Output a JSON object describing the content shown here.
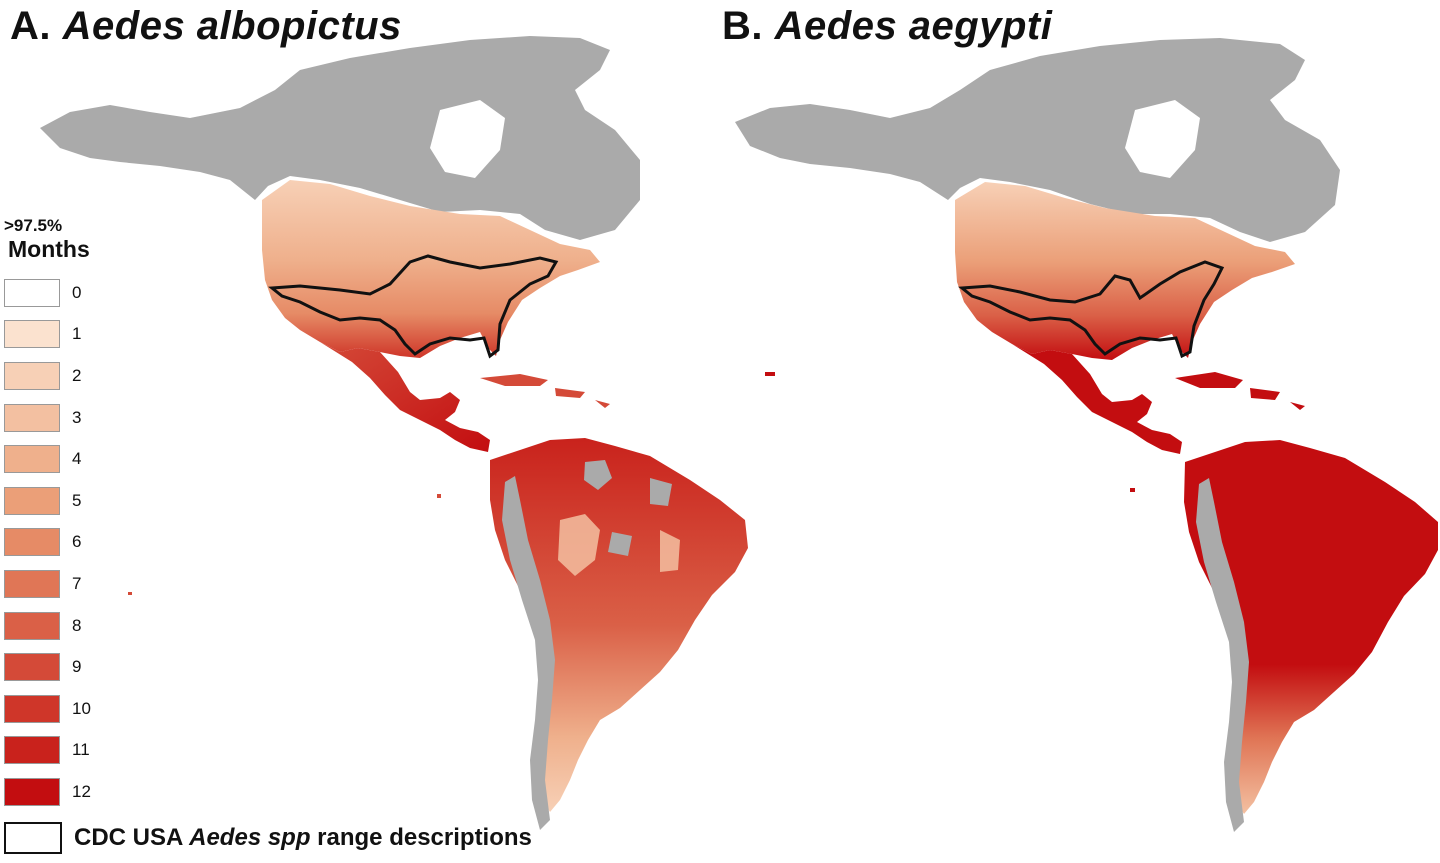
{
  "panels": [
    {
      "letter": "A.",
      "species": "Aedes albopictus"
    },
    {
      "letter": "B.",
      "species": "Aedes aegypti"
    }
  ],
  "legend": {
    "threshold": ">97.5%",
    "title": "Months",
    "items": [
      {
        "label": "0",
        "color": "#ffffff"
      },
      {
        "label": "1",
        "color": "#fbe2cf"
      },
      {
        "label": "2",
        "color": "#f7d0b6"
      },
      {
        "label": "3",
        "color": "#f3c0a1"
      },
      {
        "label": "4",
        "color": "#efb08c"
      },
      {
        "label": "5",
        "color": "#eb9f78"
      },
      {
        "label": "6",
        "color": "#e68b66"
      },
      {
        "label": "7",
        "color": "#e07656"
      },
      {
        "label": "8",
        "color": "#da6047"
      },
      {
        "label": "9",
        "color": "#d44a38"
      },
      {
        "label": "10",
        "color": "#cf3629"
      },
      {
        "label": "11",
        "color": "#c9221c"
      },
      {
        "label": "12",
        "color": "#c30d10"
      }
    ]
  },
  "cdc_legend": {
    "prefix": "CDC USA ",
    "italic": "Aedes spp",
    "suffix": " range descriptions"
  },
  "colors": {
    "no_data_land": "#aaaaaa",
    "outline": "#111111"
  }
}
